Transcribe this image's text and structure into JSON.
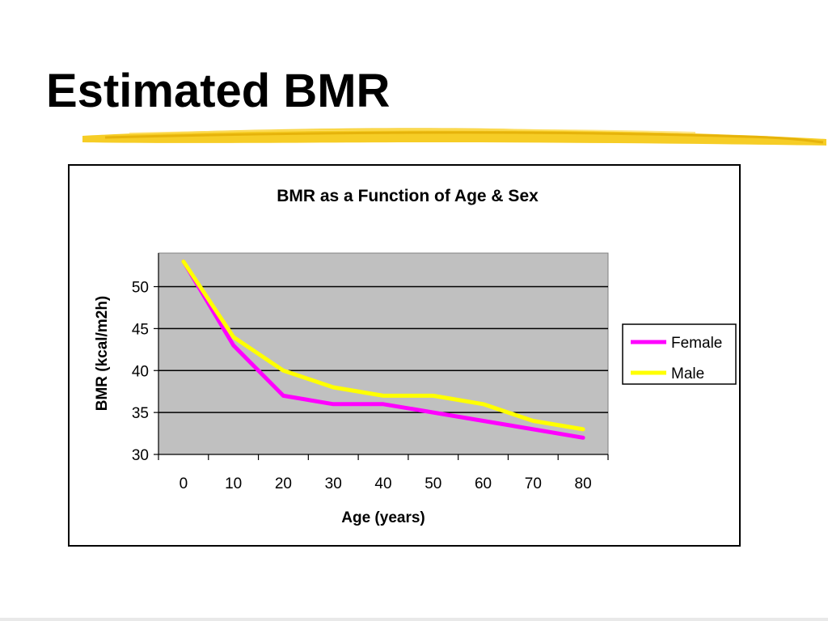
{
  "slide": {
    "title": "Estimated BMR",
    "accent_color": "#f5c400"
  },
  "chart_data": {
    "type": "line",
    "title": "BMR as a Function of Age & Sex",
    "xlabel": "Age (years)",
    "ylabel": "BMR (kcal/m2h)",
    "x": [
      0,
      10,
      20,
      30,
      40,
      50,
      60,
      70,
      80
    ],
    "x_tick_labels": [
      "0",
      "10",
      "20",
      "30",
      "40",
      "50",
      "60",
      "70",
      "80"
    ],
    "y_ticks": [
      30,
      35,
      40,
      45,
      50
    ],
    "y_tick_labels": [
      "30",
      "35",
      "40",
      "45",
      "50"
    ],
    "ylim": [
      30,
      54
    ],
    "grid": true,
    "plot_background": "#c0c0c0",
    "legend_position": "right",
    "series": [
      {
        "name": "Female",
        "color": "#ff00ff",
        "values": [
          53,
          43,
          37,
          36,
          36,
          35,
          34,
          33,
          32
        ]
      },
      {
        "name": "Male",
        "color": "#ffff00",
        "values": [
          53,
          44,
          40,
          38,
          37,
          37,
          36,
          34,
          33
        ]
      }
    ]
  }
}
